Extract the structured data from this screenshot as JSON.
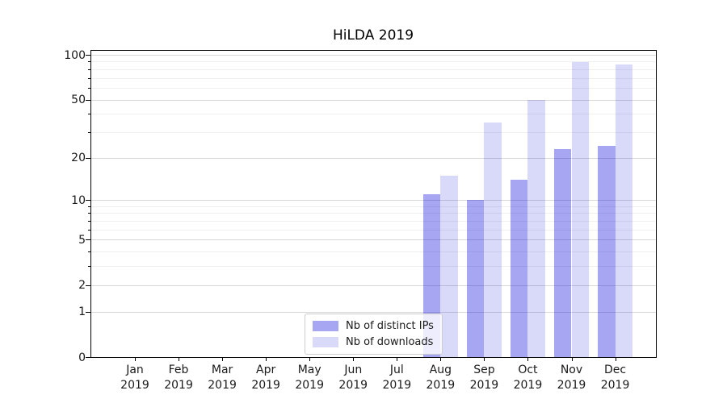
{
  "chart_data": {
    "type": "bar",
    "title": "HiLDA 2019",
    "categories": [
      "Jan 2019",
      "Feb 2019",
      "Mar 2019",
      "Apr 2019",
      "May 2019",
      "Jun 2019",
      "Jul 2019",
      "Aug 2019",
      "Sep 2019",
      "Oct 2019",
      "Nov 2019",
      "Dec 2019"
    ],
    "series": [
      {
        "name": "Nb of distinct IPs",
        "color": "rgba(0,0,220,0.35)",
        "values": [
          0,
          0,
          0,
          0,
          0,
          0,
          0,
          11,
          10,
          14,
          23,
          24
        ]
      },
      {
        "name": "Nb of downloads",
        "color": "rgba(0,0,220,0.15)",
        "values": [
          0,
          0,
          0,
          0,
          0,
          0,
          0,
          15,
          35,
          50,
          89,
          86
        ]
      }
    ],
    "xlabel": "",
    "ylabel": "",
    "yscale": "log1p",
    "ylim": [
      0,
      100
    ],
    "y_major_ticks": [
      0,
      1,
      2,
      5,
      10,
      20,
      50,
      100
    ],
    "y_minor_ticks": [
      3,
      4,
      6,
      7,
      8,
      9,
      30,
      40,
      60,
      70,
      80,
      90
    ],
    "grid": true,
    "legend_position": "lower center",
    "style": {
      "major_grid_color": "#d7d7d7",
      "minor_grid_color": "#efefef",
      "spine_color": "#000000",
      "text_color": "#1a1a1a",
      "background": "#ffffff"
    }
  }
}
